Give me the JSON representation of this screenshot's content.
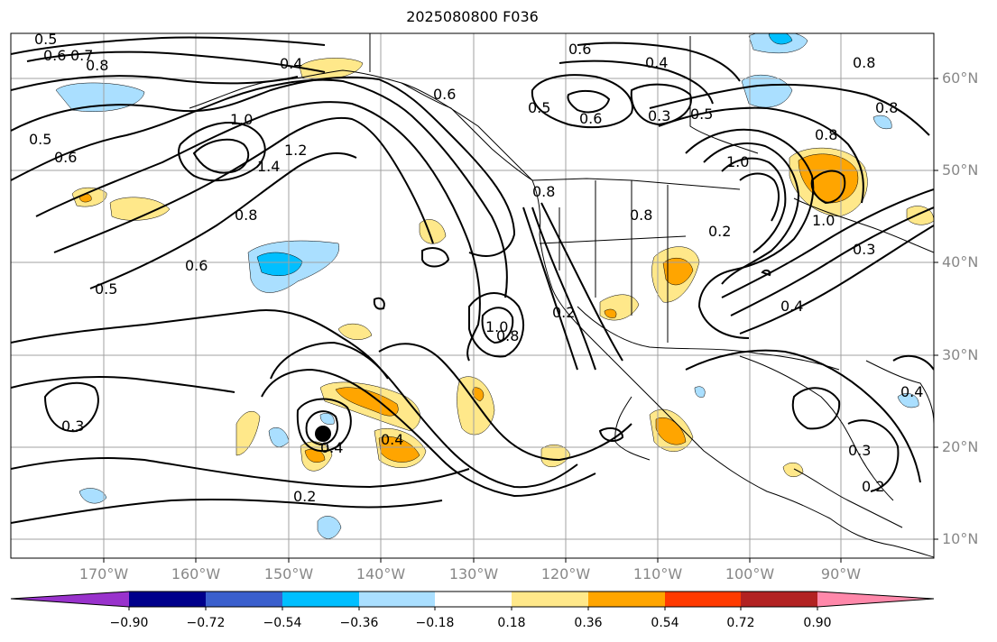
{
  "title": "2025080800 F036",
  "latitude_labels": [
    "60°N",
    "50°N",
    "40°N",
    "30°N",
    "20°N",
    "10°N"
  ],
  "longitude_labels": [
    "170°W",
    "160°W",
    "150°W",
    "140°W",
    "130°W",
    "120°W",
    "110°W",
    "100°W",
    "90°W"
  ],
  "colorbar": {
    "ticks": [
      "−0.90",
      "−0.72",
      "−0.54",
      "−0.36",
      "−0.18",
      "0.18",
      "0.36",
      "0.54",
      "0.72",
      "0.90"
    ],
    "colors": [
      "#9932cc",
      "#00008b",
      "#3a5fcd",
      "#00bfff",
      "#aadfff",
      "#ffffff",
      "#ffe88a",
      "#ffa500",
      "#ff3a00",
      "#b22222",
      "#ff88aa"
    ]
  },
  "contour_labels": [
    "0.5",
    "0.6",
    "0.7",
    "0.8",
    "0.4",
    "1.0",
    "1.2",
    "1.4",
    "0.8",
    "0.6",
    "0.5",
    "0.5",
    "0.6",
    "0.6",
    "0.4",
    "0.5",
    "0.6",
    "0.3",
    "0.5",
    "1.0",
    "0.8",
    "0.8",
    "1.0",
    "0.8",
    "0.2",
    "0.4",
    "0.2",
    "0.8",
    "1.0",
    "0.8",
    "0.3",
    "0.4",
    "0.4",
    "0.2",
    "0.3",
    "0.2",
    "0.4",
    "0.3",
    "0.8",
    "0.6"
  ],
  "marker": "storm-center-dot"
}
